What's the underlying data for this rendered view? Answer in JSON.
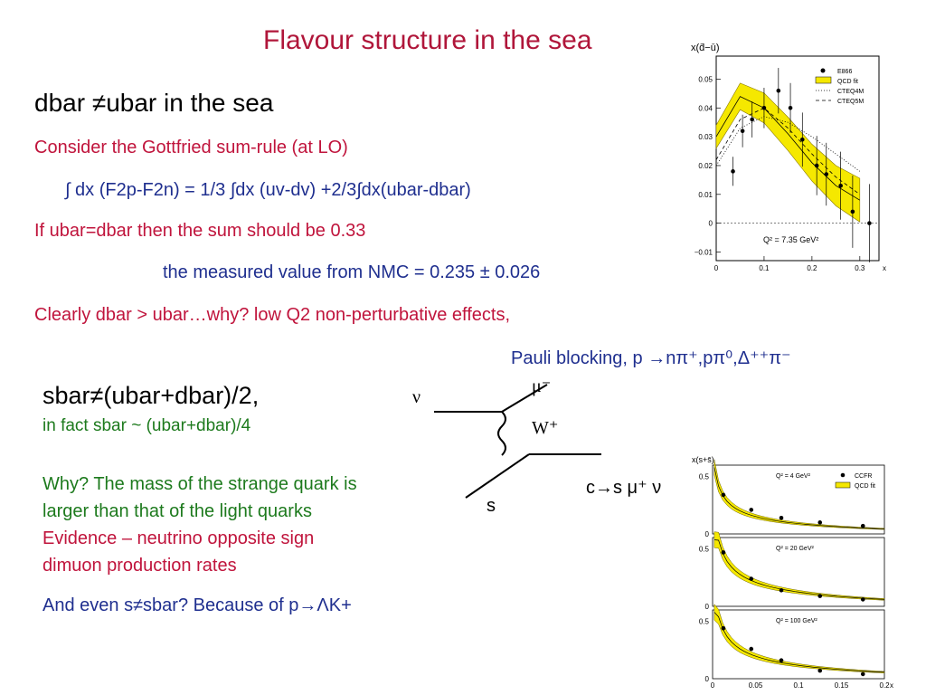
{
  "slide": {
    "title": "Flavour structure in the sea",
    "heading1": "dbar ≠ubar in the sea",
    "line1": "Consider the Gottfried sum-rule (at LO)",
    "formula": "∫ dx (F2p-F2n) = 1/3 ∫dx (uv-dv) +2/3∫dx(ubar-dbar)",
    "line2": "If ubar=dbar then the sum should be 0.33",
    "line3": "the measured value from NMC = 0.235 ± 0.026",
    "line4": "Clearly dbar > ubar…why?  low Q2 non-perturbative effects,",
    "pauli": "Pauli blocking,  p →nπ⁺,pπ⁰,Δ⁺⁺π⁻",
    "heading2": "sbar≠(ubar+dbar)/2,",
    "sub2": "in fact sbar ~ (ubar+dbar)/4",
    "why": [
      "Why? The mass of the strange quark is",
      "larger than that of the light quarks",
      "Evidence – neutrino opposite sign",
      "dimuon production rates"
    ],
    "last": "And even s≠sbar? Because of p→ΛK+"
  },
  "feynman": {
    "nu": "ν",
    "mu": "μ⁻",
    "w": "W⁺",
    "s": "s",
    "decay": "c→s μ⁺ ν"
  },
  "plot1": {
    "ylabel": "x(d̄−ū)",
    "yticks": [
      "0.05",
      "0.04",
      "0.03",
      "0.02",
      "0.01",
      "0",
      "−0.01"
    ],
    "xticks": [
      "0",
      "0.1",
      "0.2",
      "0.3",
      "x"
    ],
    "legend": [
      "E866",
      "QCD fit",
      "CTEQ4M",
      "CTEQ5M"
    ],
    "q2": "Q² = 7.35 GeV²"
  },
  "plot2": {
    "ylabel": "x(s+s̄)",
    "legend": [
      "CCFR",
      "QCD fit"
    ],
    "panels": [
      {
        "q2": "Q² = 4 GeV²",
        "yticks": [
          "0.5",
          "0"
        ]
      },
      {
        "q2": "Q² = 20 GeV²",
        "yticks": [
          "0.5",
          "0"
        ]
      },
      {
        "q2": "Q² = 100 GeV²",
        "yticks": [
          "0.5",
          "0"
        ]
      }
    ],
    "xticks": [
      "0",
      "0.05",
      "0.1",
      "0.15",
      "0.2",
      "x"
    ]
  },
  "chart_data": [
    {
      "type": "scatter",
      "title": "",
      "ylabel": "x(d̄−ū)",
      "xlabel": "x",
      "xlim": [
        0,
        0.34
      ],
      "ylim": [
        -0.013,
        0.058
      ],
      "series": [
        {
          "name": "E866",
          "x": [
            0.035,
            0.055,
            0.075,
            0.1,
            0.13,
            0.155,
            0.18,
            0.21,
            0.23,
            0.26,
            0.285,
            0.32
          ],
          "values": [
            0.018,
            0.032,
            0.036,
            0.04,
            0.046,
            0.04,
            0.029,
            0.02,
            0.017,
            0.013,
            0.004,
            0.0
          ]
        },
        {
          "name": "QCD fit",
          "x": [
            0.0,
            0.05,
            0.1,
            0.15,
            0.2,
            0.25,
            0.3
          ],
          "values": [
            0.03,
            0.044,
            0.04,
            0.031,
            0.021,
            0.013,
            0.008
          ]
        },
        {
          "name": "CTEQ4M",
          "x": [
            0.0,
            0.05,
            0.1,
            0.15,
            0.2,
            0.25,
            0.3
          ],
          "values": [
            0.02,
            0.033,
            0.037,
            0.035,
            0.03,
            0.024,
            0.018
          ]
        },
        {
          "name": "CTEQ5M",
          "x": [
            0.0,
            0.05,
            0.1,
            0.15,
            0.2,
            0.25,
            0.3
          ],
          "values": [
            0.022,
            0.036,
            0.04,
            0.033,
            0.024,
            0.016,
            0.01
          ]
        }
      ]
    },
    {
      "type": "scatter",
      "title": "",
      "ylabel": "x(s+s̄)",
      "xlabel": "x",
      "xlim": [
        0,
        0.2
      ],
      "ylim": [
        0,
        0.6
      ],
      "panels": [
        {
          "q2": "Q² = 4 GeV²",
          "x": [
            0.0125,
            0.045,
            0.08,
            0.125,
            0.175
          ],
          "values": [
            0.34,
            0.21,
            0.14,
            0.1,
            0.07
          ]
        },
        {
          "q2": "Q² = 20 GeV²",
          "x": [
            0.0125,
            0.045,
            0.08,
            0.125,
            0.175
          ],
          "values": [
            0.47,
            0.24,
            0.14,
            0.09,
            0.06
          ]
        },
        {
          "q2": "Q² = 100 GeV²",
          "x": [
            0.0125,
            0.045,
            0.08,
            0.125,
            0.175
          ],
          "values": [
            0.44,
            0.26,
            0.16,
            0.07,
            0.04
          ]
        }
      ]
    }
  ]
}
